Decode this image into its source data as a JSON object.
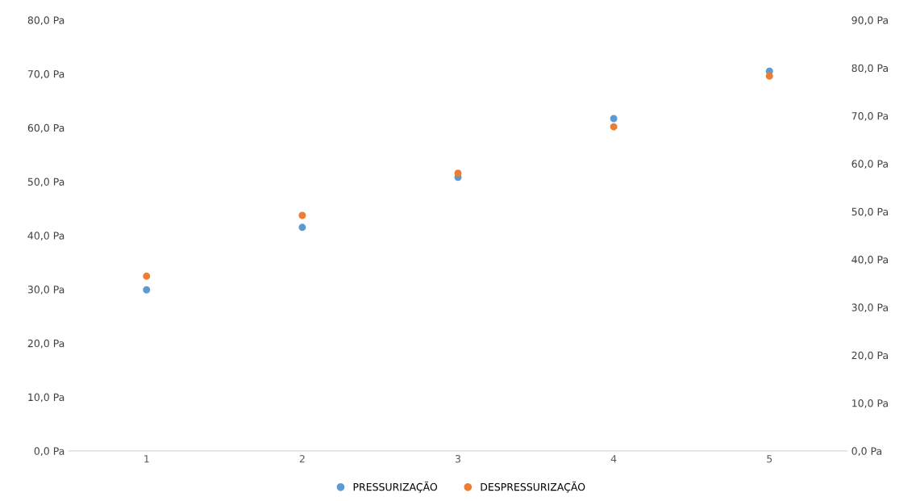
{
  "chart_data": {
    "type": "scatter",
    "categories": [
      "1",
      "2",
      "3",
      "4",
      "5"
    ],
    "series": [
      {
        "name": "PRESSURIZAÇÃO",
        "color": "#5b9bd5",
        "values": [
          29.9,
          41.5,
          50.8,
          61.7,
          70.5
        ]
      },
      {
        "name": "DESPRESSURIZAÇÃO",
        "color": "#ed7d31",
        "axis": "y2",
        "values": [
          36.5,
          49.2,
          58.0,
          67.7,
          78.3
        ]
      }
    ],
    "ylim": [
      0,
      80
    ],
    "yticks": [
      {
        "value": 0,
        "label": "0,0 Pa"
      },
      {
        "value": 10,
        "label": "10,0 Pa"
      },
      {
        "value": 20,
        "label": "20,0 Pa"
      },
      {
        "value": 30,
        "label": "30,0 Pa"
      },
      {
        "value": 40,
        "label": "40,0 Pa"
      },
      {
        "value": 50,
        "label": "50,0 Pa"
      },
      {
        "value": 60,
        "label": "60,0 Pa"
      },
      {
        "value": 70,
        "label": "70,0 Pa"
      },
      {
        "value": 80,
        "label": "80,0 Pa"
      }
    ],
    "y2lim": [
      0,
      90
    ],
    "y2ticks": [
      {
        "value": 0,
        "label": "0,0 Pa"
      },
      {
        "value": 10,
        "label": "10,0 Pa"
      },
      {
        "value": 20,
        "label": "20,0 Pa"
      },
      {
        "value": 30,
        "label": "30,0 Pa"
      },
      {
        "value": 40,
        "label": "40,0 Pa"
      },
      {
        "value": 50,
        "label": "50,0 Pa"
      },
      {
        "value": 60,
        "label": "60,0 Pa"
      },
      {
        "value": 70,
        "label": "70,0 Pa"
      },
      {
        "value": 80,
        "label": "80,0 Pa"
      },
      {
        "value": 90,
        "label": "90,0 Pa"
      }
    ],
    "grid": false,
    "legend": "bottom",
    "marker": "circle"
  }
}
